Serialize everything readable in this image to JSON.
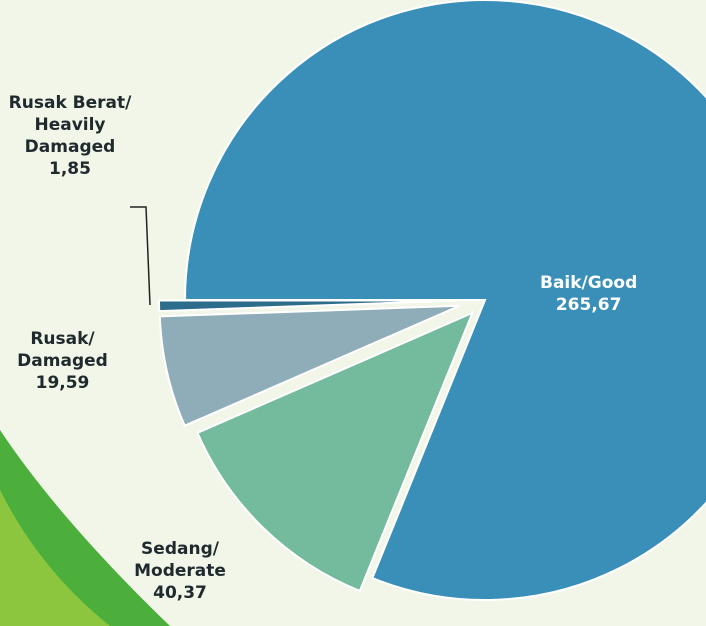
{
  "chart_data": {
    "type": "pie",
    "categories": [
      "Baik/Good",
      "Sedang/ Moderate",
      "Rusak/ Damaged",
      "Rusak Berat/ Heavily Damaged"
    ],
    "values": [
      265.67,
      40.37,
      19.59,
      1.85
    ],
    "value_labels": [
      "265,67",
      "40,37",
      "19,59",
      "1,85"
    ],
    "colors": [
      "#3a8fb9",
      "#73bb9c",
      "#8fadb8",
      "#2d6d8c"
    ]
  }
}
